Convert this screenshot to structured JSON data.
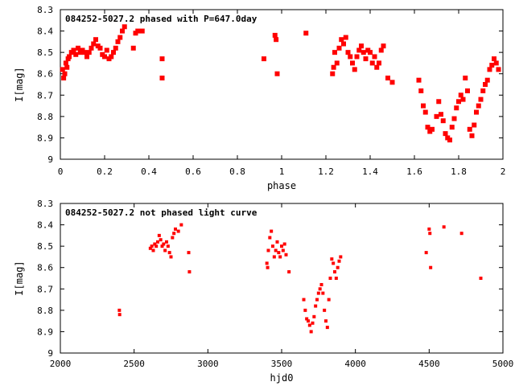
{
  "chart_data": [
    {
      "type": "scatter",
      "title": "084252-5027.2 phased with P=647.0day",
      "xlabel": "phase",
      "ylabel": "I[mag]",
      "xlim": [
        0,
        2
      ],
      "ylim": [
        8.3,
        9
      ],
      "y_inverted": true,
      "x_ticks": [
        "0",
        "0.2",
        "0.4",
        "0.6",
        "0.8",
        "1",
        "1.2",
        "1.4",
        "1.6",
        "1.8",
        "2"
      ],
      "y_ticks": [
        "8.3",
        "8.4",
        "8.5",
        "8.6",
        "8.7",
        "8.8",
        "8.9",
        "9"
      ],
      "marker_color": "#ff0000",
      "grid": false,
      "series": [
        {
          "x": [
            0.01,
            0.015,
            0.02,
            0.025,
            0.03,
            0.035,
            0.04,
            0.05,
            0.06,
            0.07,
            0.08,
            0.09,
            0.1,
            0.11,
            0.12,
            0.13,
            0.14,
            0.15,
            0.16,
            0.17,
            0.18,
            0.19,
            0.2,
            0.21,
            0.22,
            0.23,
            0.24,
            0.25,
            0.26,
            0.27,
            0.28,
            0.29,
            0.33,
            0.34,
            0.35,
            0.37,
            0.46,
            0.46,
            0.92,
            0.97,
            0.975,
            0.98,
            1.11,
            1.23,
            1.235,
            1.24,
            1.25,
            1.26,
            1.27,
            1.28,
            1.29,
            1.3,
            1.31,
            1.32,
            1.33,
            1.34,
            1.35,
            1.36,
            1.37,
            1.38,
            1.39,
            1.4,
            1.41,
            1.42,
            1.43,
            1.44,
            1.45,
            1.46,
            1.48,
            1.5,
            1.62,
            1.63,
            1.64,
            1.65,
            1.66,
            1.67,
            1.68,
            1.7,
            1.71,
            1.72,
            1.73,
            1.74,
            1.75,
            1.76,
            1.77,
            1.78,
            1.79,
            1.8,
            1.81,
            1.82,
            1.83,
            1.84,
            1.85,
            1.86,
            1.87,
            1.88,
            1.89,
            1.9,
            1.91,
            1.92,
            1.93,
            1.94,
            1.95,
            1.96,
            1.97,
            1.98
          ],
          "y": [
            8.58,
            8.62,
            8.6,
            8.55,
            8.57,
            8.53,
            8.52,
            8.5,
            8.49,
            8.51,
            8.48,
            8.5,
            8.49,
            8.5,
            8.52,
            8.5,
            8.48,
            8.46,
            8.44,
            8.47,
            8.48,
            8.51,
            8.52,
            8.49,
            8.53,
            8.52,
            8.5,
            8.48,
            8.45,
            8.43,
            8.4,
            8.38,
            8.48,
            8.41,
            8.4,
            8.4,
            8.53,
            8.62,
            8.53,
            8.42,
            8.44,
            8.6,
            8.41,
            8.6,
            8.57,
            8.5,
            8.55,
            8.48,
            8.44,
            8.46,
            8.43,
            8.5,
            8.52,
            8.55,
            8.58,
            8.52,
            8.49,
            8.47,
            8.5,
            8.53,
            8.49,
            8.5,
            8.55,
            8.52,
            8.57,
            8.55,
            8.49,
            8.47,
            8.62,
            8.64,
            8.63,
            8.68,
            8.75,
            8.78,
            8.85,
            8.87,
            8.86,
            8.8,
            8.73,
            8.79,
            8.82,
            8.88,
            8.9,
            8.91,
            8.85,
            8.81,
            8.76,
            8.73,
            8.7,
            8.72,
            8.62,
            8.68,
            8.86,
            8.89,
            8.84,
            8.78,
            8.75,
            8.72,
            8.68,
            8.65,
            8.63,
            8.58,
            8.56,
            8.53,
            8.55,
            8.58
          ]
        }
      ]
    },
    {
      "type": "scatter",
      "title": "084252-5027.2 not phased light curve",
      "xlabel": "hjd0",
      "ylabel": "I[mag]",
      "xlim": [
        2000,
        5000
      ],
      "ylim": [
        8.3,
        9
      ],
      "y_inverted": true,
      "x_ticks": [
        "2000",
        "2500",
        "3000",
        "3500",
        "4000",
        "4500",
        "5000"
      ],
      "y_ticks": [
        "8.3",
        "8.4",
        "8.5",
        "8.6",
        "8.7",
        "8.8",
        "8.9",
        "9"
      ],
      "marker_color": "#ff0000",
      "grid": false,
      "series": [
        {
          "x": [
            2400,
            2402,
            2610,
            2620,
            2630,
            2640,
            2650,
            2660,
            2670,
            2680,
            2690,
            2700,
            2710,
            2720,
            2730,
            2740,
            2750,
            2760,
            2770,
            2780,
            2800,
            2820,
            2870,
            2875,
            3400,
            3405,
            3410,
            3420,
            3430,
            3440,
            3450,
            3460,
            3470,
            3480,
            3490,
            3500,
            3510,
            3520,
            3530,
            3550,
            3650,
            3660,
            3670,
            3680,
            3690,
            3700,
            3710,
            3720,
            3730,
            3740,
            3750,
            3760,
            3770,
            3780,
            3790,
            3800,
            3810,
            3820,
            3830,
            3840,
            3850,
            3860,
            3870,
            3880,
            3890,
            3900,
            4480,
            4500,
            4505,
            4510,
            4600,
            4720,
            4850
          ],
          "y": [
            8.8,
            8.82,
            8.51,
            8.5,
            8.52,
            8.49,
            8.5,
            8.48,
            8.45,
            8.47,
            8.5,
            8.49,
            8.52,
            8.48,
            8.5,
            8.53,
            8.55,
            8.46,
            8.44,
            8.42,
            8.43,
            8.4,
            8.53,
            8.62,
            8.58,
            8.6,
            8.52,
            8.46,
            8.43,
            8.5,
            8.55,
            8.52,
            8.48,
            8.53,
            8.55,
            8.5,
            8.52,
            8.49,
            8.54,
            8.62,
            8.75,
            8.8,
            8.84,
            8.85,
            8.87,
            8.9,
            8.86,
            8.83,
            8.78,
            8.75,
            8.72,
            8.7,
            8.68,
            8.72,
            8.8,
            8.85,
            8.88,
            8.75,
            8.65,
            8.56,
            8.58,
            8.62,
            8.65,
            8.6,
            8.57,
            8.55,
            8.53,
            8.42,
            8.44,
            8.6,
            8.41,
            8.44,
            8.65
          ]
        }
      ]
    }
  ]
}
